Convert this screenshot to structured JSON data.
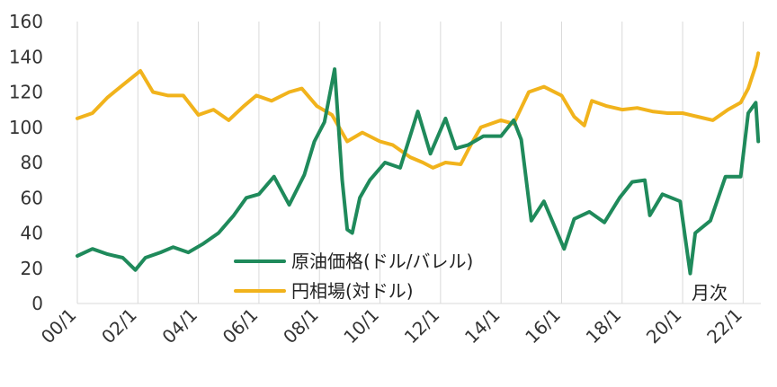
{
  "chart_data": {
    "type": "line",
    "title": "",
    "xlabel": "",
    "ylabel": "",
    "ylim": [
      0,
      160
    ],
    "y_ticks": [
      0,
      20,
      40,
      60,
      80,
      100,
      120,
      140,
      160
    ],
    "x_ticks": [
      "00/1",
      "02/1",
      "04/1",
      "06/1",
      "08/1",
      "10/1",
      "12/1",
      "14/1",
      "16/1",
      "18/1",
      "20/1",
      "22/1"
    ],
    "grid": "vertical",
    "legend_placement": "center",
    "annotation": "月次",
    "series": [
      {
        "name": "原油価格(ドル/バレル)",
        "color": "#1f8a5b",
        "x": [
          "2000-01",
          "2000-07",
          "2001-01",
          "2001-07",
          "2001-12",
          "2002-04",
          "2002-10",
          "2003-03",
          "2003-09",
          "2004-03",
          "2004-09",
          "2005-03",
          "2005-08",
          "2006-01",
          "2006-07",
          "2007-01",
          "2007-07",
          "2007-11",
          "2008-03",
          "2008-07",
          "2008-10",
          "2008-12",
          "2009-02",
          "2009-05",
          "2009-09",
          "2010-03",
          "2010-09",
          "2011-04",
          "2011-09",
          "2012-03",
          "2012-07",
          "2012-12",
          "2013-06",
          "2014-01",
          "2014-06",
          "2014-09",
          "2015-01",
          "2015-06",
          "2016-02",
          "2016-06",
          "2016-12",
          "2017-06",
          "2017-12",
          "2018-05",
          "2018-10",
          "2018-12",
          "2019-05",
          "2019-12",
          "2020-04",
          "2020-06",
          "2020-12",
          "2021-06",
          "2021-12",
          "2022-03",
          "2022-06",
          "2022-07"
        ],
        "values": [
          27,
          31,
          28,
          26,
          19,
          26,
          29,
          32,
          29,
          34,
          40,
          50,
          60,
          62,
          72,
          56,
          73,
          92,
          103,
          133,
          70,
          42,
          40,
          60,
          70,
          80,
          77,
          109,
          85,
          105,
          88,
          90,
          95,
          95,
          104,
          93,
          47,
          58,
          31,
          48,
          52,
          46,
          60,
          69,
          70,
          50,
          62,
          58,
          17,
          40,
          47,
          72,
          72,
          108,
          114,
          92
        ]
      },
      {
        "name": "円相場(対ドル)",
        "color": "#f1b31c",
        "x": [
          "2000-01",
          "2000-07",
          "2001-01",
          "2001-07",
          "2002-02",
          "2002-07",
          "2003-01",
          "2003-07",
          "2004-01",
          "2004-07",
          "2005-01",
          "2005-07",
          "2005-12",
          "2006-06",
          "2007-01",
          "2007-06",
          "2007-12",
          "2008-06",
          "2008-12",
          "2009-06",
          "2010-01",
          "2010-06",
          "2011-01",
          "2011-06",
          "2011-10",
          "2012-03",
          "2012-09",
          "2013-01",
          "2013-05",
          "2014-01",
          "2014-06",
          "2014-12",
          "2015-06",
          "2016-01",
          "2016-06",
          "2016-10",
          "2017-01",
          "2017-07",
          "2018-01",
          "2018-07",
          "2019-01",
          "2019-07",
          "2020-01",
          "2020-07",
          "2021-01",
          "2021-07",
          "2021-12",
          "2022-03",
          "2022-06",
          "2022-07"
        ],
        "values": [
          105,
          108,
          117,
          124,
          132,
          120,
          118,
          118,
          107,
          110,
          104,
          112,
          118,
          115,
          120,
          122,
          112,
          107,
          92,
          97,
          92,
          90,
          83,
          80,
          77,
          80,
          79,
          90,
          100,
          104,
          102,
          120,
          123,
          118,
          106,
          101,
          115,
          112,
          110,
          111,
          109,
          108,
          108,
          106,
          104,
          110,
          114,
          122,
          135,
          142
        ]
      }
    ]
  }
}
